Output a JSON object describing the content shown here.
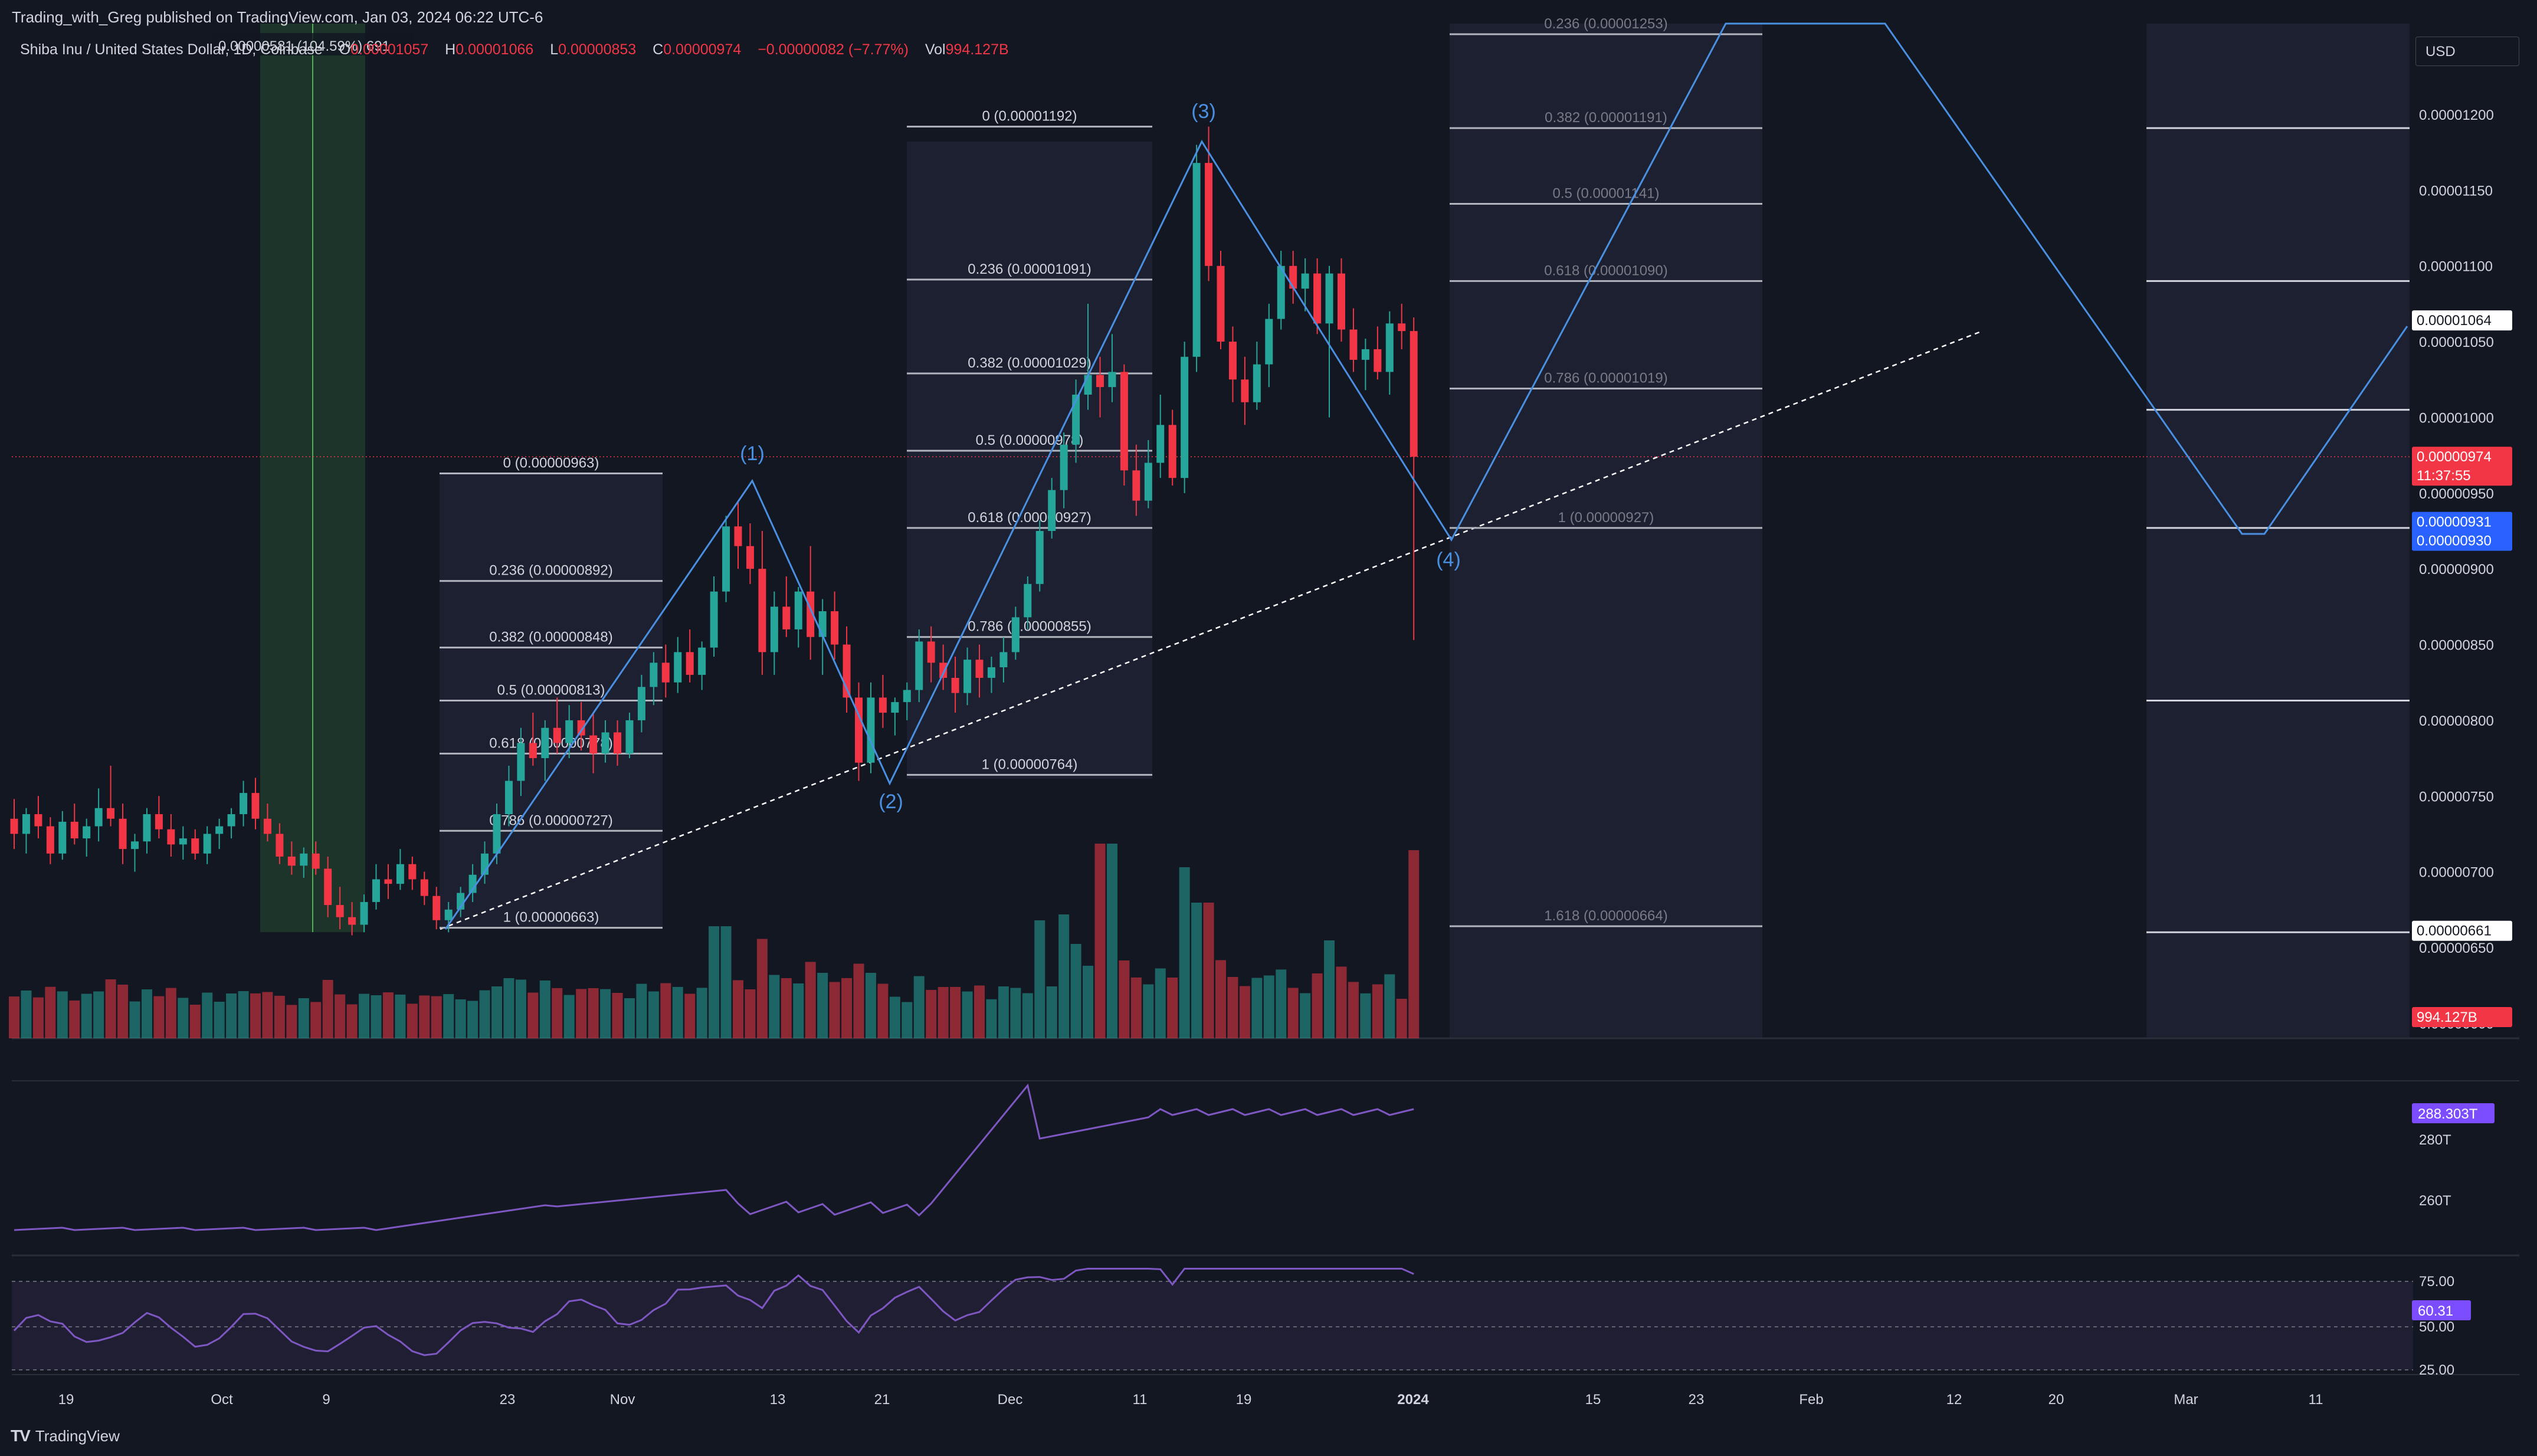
{
  "header": {
    "published": "Trading_with_Greg published on TradingView.com, Jan 03, 2024 06:22 UTC-6",
    "symbol": "Shiba Inu / United States Dollar, 1D, Coinbase",
    "ohlc": [
      {
        "label": "O",
        "value": "0.00001057"
      },
      {
        "label": "H",
        "value": "0.00001066"
      },
      {
        "label": "L",
        "value": "0.00000853"
      },
      {
        "label": "C",
        "value": "0.00000974"
      }
    ],
    "change": "−0.00000082 (−7.77%)",
    "volume_label": "Vol",
    "volume_value": "994.127B",
    "range_tooltip": "0.00000581 (104.59%) 691"
  },
  "currency": "USD",
  "footer": {
    "brand": "TradingView",
    "brand_mark": "TV"
  },
  "colors": {
    "background": "#131722",
    "up": "#26a69a",
    "down": "#f23645",
    "wave_line": "#4a90e2",
    "fib_line": "#b2b5be",
    "trendline": "#ffffff",
    "obv_line": "#7e57c2",
    "rsi_line": "#7e57c2",
    "rsi_band": "#2a2340",
    "date_range_fill": "#1e3a2a",
    "date_range_edge": "#4caf50"
  },
  "price_axis": {
    "ticks": [
      "0.00001200",
      "0.00001150",
      "0.00001100",
      "0.00001050",
      "0.00001000",
      "0.00000950",
      "0.00000900",
      "0.00000850",
      "0.00000800",
      "0.00000750",
      "0.00000700",
      "0.00000650",
      "0.00000600"
    ],
    "tick_values": [
      1.2e-05,
      1.15e-05,
      1.1e-05,
      1.05e-05,
      1e-05,
      9.5e-06,
      9e-06,
      8.5e-06,
      8e-06,
      7.5e-06,
      7e-06,
      6.5e-06,
      6e-06
    ],
    "range": [
      5.9e-06,
      1.26e-05
    ],
    "labels": [
      {
        "text": "0.00001064",
        "value": 1.064e-05,
        "style": "white"
      },
      {
        "text": "0.00000974",
        "value": 9.74e-06,
        "style": "red",
        "sub": "11:37:55"
      },
      {
        "text": "0.00000931",
        "value": 9.31e-06,
        "style": "blue",
        "sub": "0.00000930"
      },
      {
        "text": "0.00000661",
        "value": 6.61e-06,
        "style": "white"
      },
      {
        "text": "994.127B",
        "value": 6.04e-06,
        "style": "red"
      }
    ]
  },
  "time_axis": {
    "labels": [
      "19",
      "Oct",
      "9",
      "23",
      "Nov",
      "13",
      "21",
      "Dec",
      "11",
      "19",
      "2024",
      "15",
      "23",
      "Feb",
      "12",
      "20",
      "Mar",
      "11"
    ],
    "bold": [
      "2024"
    ]
  },
  "obv_axis": {
    "labels": [
      "280T",
      "260T"
    ],
    "badge": "288.303T"
  },
  "rsi_axis": {
    "labels": [
      "75.00",
      "50.00",
      "25.00"
    ],
    "badge": "60.31",
    "upper": 75,
    "lower": 25,
    "mid": 50
  },
  "annotations": {
    "waves": [
      "(1)",
      "(2)",
      "(3)",
      "(4)"
    ],
    "fib1": [
      "0 (0.00000963)",
      "0.236 (0.00000892)",
      "0.382 (0.00000848)",
      "0.5 (0.00000813)",
      "0.618 (0.00000778)",
      "0.786 (0.00000727)",
      "1 (0.00000663)"
    ],
    "fib2": [
      "0 (0.00001192)",
      "0.236 (0.00001091)",
      "0.382 (0.00001029)",
      "0.5 (0.00000978)",
      "0.618 (0.00000927)",
      "0.786 (0.00000855)",
      "1 (0.00000764)"
    ],
    "fib3": [
      "0.236 (0.00001253)",
      "0.382 (0.00001191)",
      "0.5 (0.00001141)",
      "0.618 (0.00001090)",
      "0.786 (0.00001019)",
      "1 (0.00000927)",
      "1.618 (0.00000664)"
    ]
  },
  "chart_data": {
    "type": "candlestick",
    "title": "Shiba Inu / United States Dollar, 1D, Coinbase",
    "interval": "1D",
    "range": "approx. 2023-09-11 to 2024-01-03",
    "candles": [
      {
        "o": 7.35,
        "h": 7.48,
        "l": 7.15,
        "c": 7.25
      },
      {
        "o": 7.25,
        "h": 7.42,
        "l": 7.12,
        "c": 7.38
      },
      {
        "o": 7.38,
        "h": 7.5,
        "l": 7.22,
        "c": 7.3
      },
      {
        "o": 7.3,
        "h": 7.36,
        "l": 7.05,
        "c": 7.12
      },
      {
        "o": 7.12,
        "h": 7.4,
        "l": 7.08,
        "c": 7.33
      },
      {
        "o": 7.33,
        "h": 7.45,
        "l": 7.18,
        "c": 7.22
      },
      {
        "o": 7.22,
        "h": 7.35,
        "l": 7.1,
        "c": 7.3
      },
      {
        "o": 7.3,
        "h": 7.55,
        "l": 7.2,
        "c": 7.42
      },
      {
        "o": 7.42,
        "h": 7.7,
        "l": 7.3,
        "c": 7.35
      },
      {
        "o": 7.35,
        "h": 7.45,
        "l": 7.05,
        "c": 7.15
      },
      {
        "o": 7.15,
        "h": 7.25,
        "l": 7.0,
        "c": 7.2
      },
      {
        "o": 7.2,
        "h": 7.42,
        "l": 7.12,
        "c": 7.38
      },
      {
        "o": 7.38,
        "h": 7.5,
        "l": 7.22,
        "c": 7.28
      },
      {
        "o": 7.28,
        "h": 7.38,
        "l": 7.1,
        "c": 7.18
      },
      {
        "o": 7.18,
        "h": 7.3,
        "l": 7.08,
        "c": 7.22
      },
      {
        "o": 7.22,
        "h": 7.28,
        "l": 7.08,
        "c": 7.12
      },
      {
        "o": 7.12,
        "h": 7.3,
        "l": 7.05,
        "c": 7.25
      },
      {
        "o": 7.25,
        "h": 7.35,
        "l": 7.15,
        "c": 7.3
      },
      {
        "o": 7.3,
        "h": 7.42,
        "l": 7.22,
        "c": 7.38
      },
      {
        "o": 7.38,
        "h": 7.6,
        "l": 7.3,
        "c": 7.52
      },
      {
        "o": 7.52,
        "h": 7.62,
        "l": 7.28,
        "c": 7.35
      },
      {
        "o": 7.35,
        "h": 7.45,
        "l": 7.2,
        "c": 7.25
      },
      {
        "o": 7.25,
        "h": 7.32,
        "l": 7.05,
        "c": 7.1
      },
      {
        "o": 7.1,
        "h": 7.2,
        "l": 6.98,
        "c": 7.04
      },
      {
        "o": 7.04,
        "h": 7.16,
        "l": 6.96,
        "c": 7.12
      },
      {
        "o": 7.12,
        "h": 7.2,
        "l": 6.98,
        "c": 7.02
      },
      {
        "o": 7.02,
        "h": 7.1,
        "l": 6.7,
        "c": 6.78
      },
      {
        "o": 6.78,
        "h": 6.9,
        "l": 6.62,
        "c": 6.7
      },
      {
        "o": 6.7,
        "h": 6.8,
        "l": 6.58,
        "c": 6.65
      },
      {
        "o": 6.65,
        "h": 6.85,
        "l": 6.6,
        "c": 6.8
      },
      {
        "o": 6.8,
        "h": 7.05,
        "l": 6.75,
        "c": 6.95
      },
      {
        "o": 6.95,
        "h": 7.05,
        "l": 6.82,
        "c": 6.92
      },
      {
        "o": 6.92,
        "h": 7.15,
        "l": 6.88,
        "c": 7.05
      },
      {
        "o": 7.05,
        "h": 7.1,
        "l": 6.88,
        "c": 6.95
      },
      {
        "o": 6.95,
        "h": 7.0,
        "l": 6.78,
        "c": 6.84
      },
      {
        "o": 6.84,
        "h": 6.9,
        "l": 6.62,
        "c": 6.68
      },
      {
        "o": 6.68,
        "h": 6.8,
        "l": 6.6,
        "c": 6.75
      },
      {
        "o": 6.75,
        "h": 6.9,
        "l": 6.7,
        "c": 6.86
      },
      {
        "o": 6.86,
        "h": 7.05,
        "l": 6.8,
        "c": 6.98
      },
      {
        "o": 6.98,
        "h": 7.2,
        "l": 6.92,
        "c": 7.12
      },
      {
        "o": 7.12,
        "h": 7.45,
        "l": 7.05,
        "c": 7.38
      },
      {
        "o": 7.38,
        "h": 7.7,
        "l": 7.3,
        "c": 7.6
      },
      {
        "o": 7.6,
        "h": 7.95,
        "l": 7.5,
        "c": 7.85
      },
      {
        "o": 7.85,
        "h": 8.05,
        "l": 7.7,
        "c": 7.75
      },
      {
        "o": 7.75,
        "h": 8.0,
        "l": 7.6,
        "c": 7.95
      },
      {
        "o": 7.95,
        "h": 8.15,
        "l": 7.78,
        "c": 7.85
      },
      {
        "o": 7.85,
        "h": 8.1,
        "l": 7.75,
        "c": 8.0
      },
      {
        "o": 8.0,
        "h": 8.12,
        "l": 7.8,
        "c": 7.9
      },
      {
        "o": 7.9,
        "h": 8.05,
        "l": 7.65,
        "c": 7.78
      },
      {
        "o": 7.78,
        "h": 8.0,
        "l": 7.72,
        "c": 7.92
      },
      {
        "o": 7.92,
        "h": 8.0,
        "l": 7.7,
        "c": 7.78
      },
      {
        "o": 7.78,
        "h": 8.05,
        "l": 7.75,
        "c": 8.0
      },
      {
        "o": 8.0,
        "h": 8.3,
        "l": 7.92,
        "c": 8.22
      },
      {
        "o": 8.22,
        "h": 8.45,
        "l": 8.1,
        "c": 8.38
      },
      {
        "o": 8.38,
        "h": 8.5,
        "l": 8.15,
        "c": 8.25
      },
      {
        "o": 8.25,
        "h": 8.55,
        "l": 8.18,
        "c": 8.45
      },
      {
        "o": 8.45,
        "h": 8.6,
        "l": 8.25,
        "c": 8.3
      },
      {
        "o": 8.3,
        "h": 8.52,
        "l": 8.2,
        "c": 8.48
      },
      {
        "o": 8.48,
        "h": 8.95,
        "l": 8.42,
        "c": 8.85
      },
      {
        "o": 8.85,
        "h": 9.35,
        "l": 8.78,
        "c": 9.28
      },
      {
        "o": 9.28,
        "h": 9.45,
        "l": 9.0,
        "c": 9.15
      },
      {
        "o": 9.15,
        "h": 9.3,
        "l": 8.9,
        "c": 9.0
      },
      {
        "o": 9.0,
        "h": 9.25,
        "l": 8.3,
        "c": 8.45
      },
      {
        "o": 8.45,
        "h": 8.85,
        "l": 8.3,
        "c": 8.75
      },
      {
        "o": 8.75,
        "h": 8.95,
        "l": 8.55,
        "c": 8.6
      },
      {
        "o": 8.6,
        "h": 8.88,
        "l": 8.48,
        "c": 8.85
      },
      {
        "o": 8.85,
        "h": 9.15,
        "l": 8.4,
        "c": 8.55
      },
      {
        "o": 8.55,
        "h": 8.8,
        "l": 8.3,
        "c": 8.72
      },
      {
        "o": 8.72,
        "h": 8.85,
        "l": 8.4,
        "c": 8.5
      },
      {
        "o": 8.5,
        "h": 8.62,
        "l": 8.05,
        "c": 8.15
      },
      {
        "o": 8.15,
        "h": 8.25,
        "l": 7.6,
        "c": 7.72
      },
      {
        "o": 7.72,
        "h": 8.25,
        "l": 7.65,
        "c": 8.15
      },
      {
        "o": 8.15,
        "h": 8.3,
        "l": 7.95,
        "c": 8.05
      },
      {
        "o": 8.05,
        "h": 8.15,
        "l": 7.9,
        "c": 8.12
      },
      {
        "o": 8.12,
        "h": 8.25,
        "l": 8.0,
        "c": 8.2
      },
      {
        "o": 8.2,
        "h": 8.6,
        "l": 8.12,
        "c": 8.52
      },
      {
        "o": 8.52,
        "h": 8.62,
        "l": 8.25,
        "c": 8.38
      },
      {
        "o": 8.38,
        "h": 8.5,
        "l": 8.2,
        "c": 8.28
      },
      {
        "o": 8.28,
        "h": 8.42,
        "l": 8.05,
        "c": 8.18
      },
      {
        "o": 8.18,
        "h": 8.48,
        "l": 8.1,
        "c": 8.4
      },
      {
        "o": 8.4,
        "h": 8.5,
        "l": 8.15,
        "c": 8.28
      },
      {
        "o": 8.28,
        "h": 8.42,
        "l": 8.18,
        "c": 8.35
      },
      {
        "o": 8.35,
        "h": 8.55,
        "l": 8.25,
        "c": 8.45
      },
      {
        "o": 8.45,
        "h": 8.75,
        "l": 8.4,
        "c": 8.68
      },
      {
        "o": 8.68,
        "h": 8.95,
        "l": 8.6,
        "c": 8.9
      },
      {
        "o": 8.9,
        "h": 9.32,
        "l": 8.85,
        "c": 9.25
      },
      {
        "o": 9.25,
        "h": 9.6,
        "l": 9.2,
        "c": 9.52
      },
      {
        "o": 9.52,
        "h": 9.9,
        "l": 9.4,
        "c": 9.82
      },
      {
        "o": 9.82,
        "h": 10.25,
        "l": 9.7,
        "c": 10.15
      },
      {
        "o": 10.15,
        "h": 10.75,
        "l": 10.05,
        "c": 10.28
      },
      {
        "o": 10.28,
        "h": 10.4,
        "l": 10.0,
        "c": 10.2
      },
      {
        "o": 10.2,
        "h": 10.55,
        "l": 10.1,
        "c": 10.3
      },
      {
        "o": 10.3,
        "h": 10.35,
        "l": 9.55,
        "c": 9.65
      },
      {
        "o": 9.65,
        "h": 9.82,
        "l": 9.35,
        "c": 9.45
      },
      {
        "o": 9.45,
        "h": 9.85,
        "l": 9.4,
        "c": 9.7
      },
      {
        "o": 9.7,
        "h": 10.15,
        "l": 9.6,
        "c": 9.95
      },
      {
        "o": 9.95,
        "h": 10.05,
        "l": 9.55,
        "c": 9.6
      },
      {
        "o": 9.6,
        "h": 10.5,
        "l": 9.5,
        "c": 10.4
      },
      {
        "o": 10.4,
        "h": 11.8,
        "l": 10.3,
        "c": 11.68
      },
      {
        "o": 11.68,
        "h": 11.92,
        "l": 10.9,
        "c": 11.0
      },
      {
        "o": 11.0,
        "h": 11.1,
        "l": 10.45,
        "c": 10.5
      },
      {
        "o": 10.5,
        "h": 10.6,
        "l": 10.1,
        "c": 10.25
      },
      {
        "o": 10.25,
        "h": 10.4,
        "l": 9.95,
        "c": 10.1
      },
      {
        "o": 10.1,
        "h": 10.5,
        "l": 10.05,
        "c": 10.35
      },
      {
        "o": 10.35,
        "h": 10.75,
        "l": 10.2,
        "c": 10.65
      },
      {
        "o": 10.65,
        "h": 11.1,
        "l": 10.58,
        "c": 11.0
      },
      {
        "o": 11.0,
        "h": 11.1,
        "l": 10.75,
        "c": 10.85
      },
      {
        "o": 10.85,
        "h": 11.05,
        "l": 10.7,
        "c": 10.95
      },
      {
        "o": 10.95,
        "h": 11.05,
        "l": 10.55,
        "c": 10.62
      },
      {
        "o": 10.62,
        "h": 11.0,
        "l": 10.0,
        "c": 10.95
      },
      {
        "o": 10.95,
        "h": 11.05,
        "l": 10.5,
        "c": 10.58
      },
      {
        "o": 10.58,
        "h": 10.72,
        "l": 10.3,
        "c": 10.38
      },
      {
        "o": 10.38,
        "h": 10.52,
        "l": 10.18,
        "c": 10.45
      },
      {
        "o": 10.45,
        "h": 10.6,
        "l": 10.25,
        "c": 10.3
      },
      {
        "o": 10.3,
        "h": 10.7,
        "l": 10.15,
        "c": 10.62
      },
      {
        "o": 10.62,
        "h": 10.75,
        "l": 10.45,
        "c": 10.57
      },
      {
        "o": 10.57,
        "h": 10.66,
        "l": 8.53,
        "c": 9.74
      }
    ],
    "price_unit": "1e-6 USD",
    "volume": {
      "last": "994.127B"
    },
    "obv": {
      "last": "288.303T"
    },
    "rsi": {
      "last": 60.31,
      "levels": [
        25,
        50,
        75
      ]
    }
  }
}
